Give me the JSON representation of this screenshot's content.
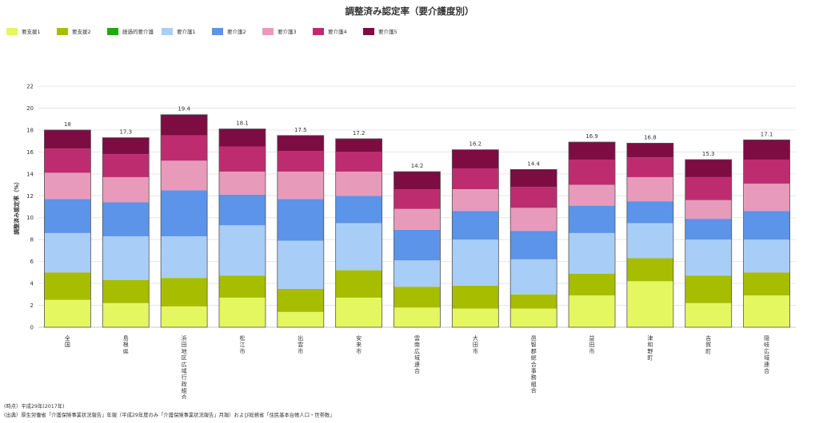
{
  "chart_data": {
    "type": "bar",
    "stacked": true,
    "title": "調整済み認定率（要介護度別）",
    "ylabel": "調整済み認定率（%）",
    "xlabel": "",
    "ylim": [
      0,
      22
    ],
    "yticks": [
      0,
      2,
      4,
      6,
      8,
      10,
      12,
      14,
      16,
      18,
      20,
      22
    ],
    "grid": true,
    "legend_position": "top-left",
    "categories": [
      "全国",
      "島根県",
      "浜田地区広域行政組合",
      "松江市",
      "出雲市",
      "安来市",
      "雲南広域連合",
      "大田市",
      "邑智郡総合事務組合",
      "益田市",
      "津和野町",
      "吉賀町",
      "隠岐広域連合"
    ],
    "totals": [
      18,
      17.3,
      19.4,
      18.1,
      17.5,
      17.2,
      14.2,
      16.2,
      14.4,
      16.9,
      16.8,
      15.3,
      17.1
    ],
    "series": [
      {
        "name": "要支援1",
        "color": "#e4f660",
        "values": [
          2.5,
          2.2,
          1.9,
          2.7,
          1.4,
          2.7,
          1.8,
          1.7,
          1.7,
          2.9,
          4.2,
          2.2,
          2.9
        ]
      },
      {
        "name": "要支援2",
        "color": "#a7bd00",
        "values": [
          2.5,
          2.1,
          2.6,
          2.0,
          2.1,
          2.5,
          1.9,
          2.1,
          1.3,
          2.0,
          2.1,
          2.5,
          2.1
        ]
      },
      {
        "name": "経過的要介護",
        "color": "#23a614",
        "values": [
          0,
          0,
          0,
          0,
          0,
          0,
          0,
          0,
          0,
          0,
          0,
          0,
          0
        ]
      },
      {
        "name": "要介護1",
        "color": "#a8cdf7",
        "values": [
          3.6,
          4.0,
          3.8,
          4.6,
          4.4,
          4.3,
          2.4,
          4.2,
          3.2,
          3.7,
          3.2,
          3.3,
          3.0
        ]
      },
      {
        "name": "要介護2",
        "color": "#5b94e8",
        "values": [
          3.1,
          3.1,
          4.2,
          2.8,
          3.8,
          2.5,
          2.8,
          2.6,
          2.6,
          2.5,
          2.0,
          1.9,
          2.6
        ]
      },
      {
        "name": "要介護3",
        "color": "#e89abb",
        "values": [
          2.4,
          2.3,
          2.7,
          2.1,
          2.5,
          2.2,
          1.9,
          2.0,
          2.1,
          1.9,
          2.2,
          1.7,
          2.5
        ]
      },
      {
        "name": "要介護4",
        "color": "#be2c70",
        "values": [
          2.2,
          2.1,
          2.3,
          2.3,
          1.9,
          1.8,
          1.8,
          1.9,
          1.9,
          2.3,
          1.8,
          2.1,
          2.2
        ]
      },
      {
        "name": "要介護5",
        "color": "#7d0c42",
        "values": [
          1.7,
          1.5,
          1.9,
          1.6,
          1.4,
          1.2,
          1.6,
          1.7,
          1.6,
          1.6,
          1.3,
          1.6,
          1.8
        ]
      }
    ]
  },
  "footnotes": {
    "time": "(時点）平成29年(2017年)",
    "source": "(出典）厚生労働省「介護保険事業状況報告」年報（平成29年度のみ「介護保険事業状況報告」月報）および総務省「住民基本台帳人口・世帯数」"
  }
}
